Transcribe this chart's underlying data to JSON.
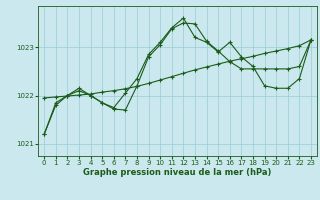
{
  "x": [
    0,
    1,
    2,
    3,
    4,
    5,
    6,
    7,
    8,
    9,
    10,
    11,
    12,
    13,
    14,
    15,
    16,
    17,
    18,
    19,
    20,
    21,
    22,
    23
  ],
  "line_jagged": [
    1021.2,
    1021.8,
    1022.0,
    1022.15,
    1022.0,
    1021.85,
    1021.75,
    1022.05,
    1022.35,
    1022.85,
    1023.1,
    1023.4,
    1023.6,
    1023.2,
    1023.1,
    1022.9,
    1023.1,
    1022.8,
    1022.6,
    1022.2,
    1022.15,
    1022.15,
    1022.35,
    1023.15
  ],
  "line_smooth": [
    1021.2,
    1021.85,
    1022.0,
    1022.1,
    1022.0,
    1021.85,
    1021.72,
    1021.7,
    1022.2,
    1022.8,
    1023.05,
    1023.38,
    1023.5,
    1023.48,
    1023.12,
    1022.92,
    1022.7,
    1022.55,
    1022.55,
    1022.55,
    1022.55,
    1022.55,
    1022.6,
    1023.15
  ],
  "line_trend": [
    1021.95,
    1021.97,
    1021.99,
    1022.01,
    1022.03,
    1022.07,
    1022.1,
    1022.14,
    1022.19,
    1022.25,
    1022.32,
    1022.39,
    1022.46,
    1022.53,
    1022.59,
    1022.65,
    1022.71,
    1022.76,
    1022.81,
    1022.87,
    1022.92,
    1022.97,
    1023.03,
    1023.15
  ],
  "line_color": "#1a5c1a",
  "bg_color": "#cce8ef",
  "grid_color": "#99ccd6",
  "xlabel": "Graphe pression niveau de la mer (hPa)",
  "ylim": [
    1020.75,
    1023.85
  ],
  "yticks": [
    1021,
    1022,
    1023
  ],
  "xticks": [
    0,
    1,
    2,
    3,
    4,
    5,
    6,
    7,
    8,
    9,
    10,
    11,
    12,
    13,
    14,
    15,
    16,
    17,
    18,
    19,
    20,
    21,
    22,
    23
  ],
  "xlabel_fontsize": 6.0,
  "tick_fontsize": 5.0
}
